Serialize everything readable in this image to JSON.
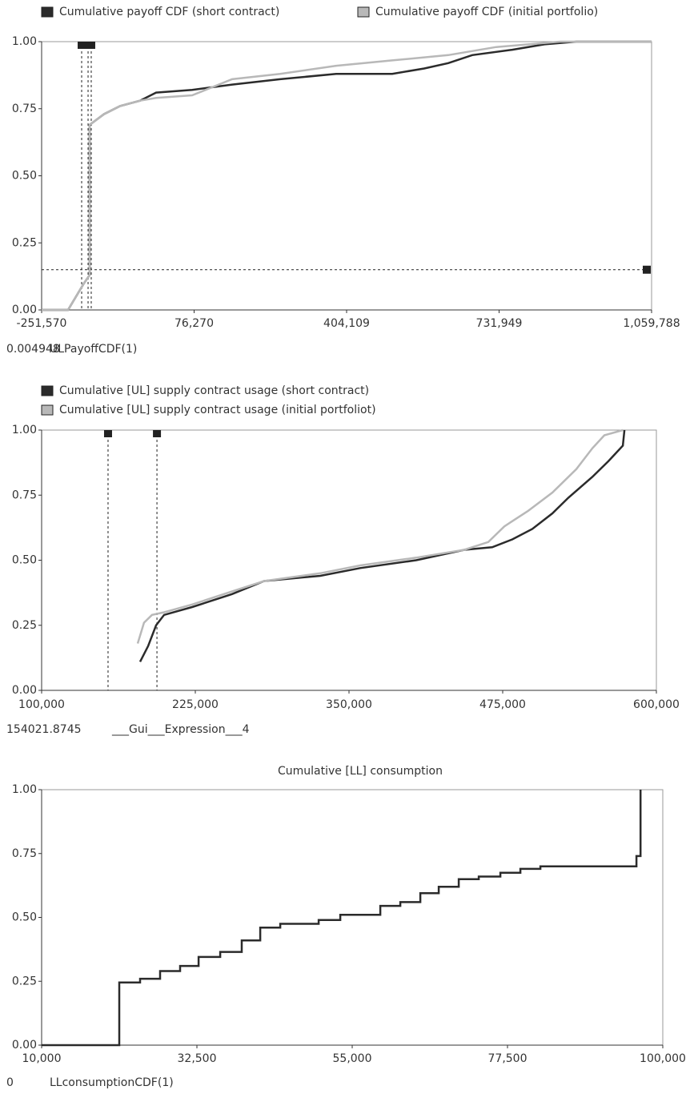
{
  "chart_data": [
    {
      "type": "line",
      "series": [
        {
          "name": "Cumulative payoff CDF (short contract)",
          "color": "#2b2b2b",
          "x": [
            -251570,
            -194800,
            -160350,
            -148300,
            -148300,
            -117300,
            -82900,
            -39900,
            -5500,
            72000,
            158000,
            261300,
            381800,
            502200,
            571000,
            622700,
            674300,
            760300,
            829200,
            898000,
            1059800
          ],
          "values": [
            0,
            0,
            0.1,
            0.13,
            0.69,
            0.73,
            0.76,
            0.78,
            0.81,
            0.82,
            0.84,
            0.86,
            0.88,
            0.88,
            0.9,
            0.92,
            0.95,
            0.97,
            0.99,
            1,
            1
          ]
        },
        {
          "name": "Cumulative payoff CDF (initial portfolio)",
          "color": "#b8b8b8",
          "x": [
            -251570,
            -194800,
            -160350,
            -148300,
            -148300,
            -117300,
            -82900,
            -39900,
            -5500,
            72000,
            158000,
            261300,
            381800,
            502200,
            622700,
            725900,
            863600,
            1059800
          ],
          "values": [
            0,
            0,
            0.1,
            0.13,
            0.69,
            0.73,
            0.76,
            0.78,
            0.79,
            0.8,
            0.86,
            0.88,
            0.91,
            0.93,
            0.95,
            0.98,
            1,
            1
          ]
        }
      ],
      "xlim": [
        -251570,
        1059788
      ],
      "xticks": [
        {
          "value": -251570,
          "label": "-251,570"
        },
        {
          "value": 76270,
          "label": "76,270"
        },
        {
          "value": 404109,
          "label": "404,109"
        },
        {
          "value": 731949,
          "label": "731,949"
        },
        {
          "value": 1059788,
          "label": "1,059,788"
        }
      ],
      "ylim": [
        0,
        1
      ],
      "yticks": [
        {
          "value": 0,
          "label": "0.00"
        },
        0.25,
        {
          "value": 0.5,
          "label": "0.50"
        },
        0.75,
        {
          "value": 1,
          "label": "1.00"
        }
      ],
      "reference_x": [
        -165500,
        -151700,
        -144900
      ],
      "reference_y": [
        0.15
      ],
      "readout": "0.004948",
      "expression": "ULPayoffCDF(1)"
    },
    {
      "type": "line",
      "series": [
        {
          "name": "Cumulative [UL] supply contract usage (short contract)",
          "color": "#2b2b2b",
          "x": [
            180100,
            186600,
            193100,
            199600,
            222400,
            254900,
            281000,
            326600,
            359100,
            404700,
            443800,
            466500,
            482800,
            499100,
            515400,
            528400,
            547900,
            560900,
            572700,
            574000
          ],
          "values": [
            0.11,
            0.17,
            0.25,
            0.29,
            0.32,
            0.37,
            0.42,
            0.44,
            0.47,
            0.5,
            0.54,
            0.55,
            0.58,
            0.62,
            0.68,
            0.74,
            0.82,
            0.88,
            0.94,
            1
          ]
        },
        {
          "name": "Cumulative [UL] supply contract usage (initial portfoliot)",
          "color": "#b8b8b8",
          "x": [
            178100,
            183300,
            189800,
            199600,
            222400,
            254900,
            281000,
            326600,
            359100,
            404700,
            443800,
            463300,
            476300,
            495800,
            515400,
            534900,
            547900,
            557700,
            572700
          ],
          "values": [
            0.18,
            0.26,
            0.29,
            0.3,
            0.33,
            0.38,
            0.42,
            0.45,
            0.48,
            0.51,
            0.54,
            0.57,
            0.63,
            0.69,
            0.76,
            0.85,
            0.93,
            0.98,
            1
          ]
        }
      ],
      "xlim": [
        100000,
        600000
      ],
      "xticks": [
        {
          "value": 100000,
          "label": "100,000"
        },
        {
          "value": 225000,
          "label": "225,000"
        },
        {
          "value": 350000,
          "label": "350,000"
        },
        {
          "value": 475000,
          "label": "475,000"
        },
        {
          "value": 600000,
          "label": "600,000"
        }
      ],
      "ylim": [
        0,
        1
      ],
      "yticks": [
        {
          "value": 0,
          "label": "0.00"
        },
        0.25,
        {
          "value": 0.5,
          "label": "0.50"
        },
        0.75,
        {
          "value": 1,
          "label": "1.00"
        }
      ],
      "reference_x": [
        154021.8745,
        193800
      ],
      "readout": "154021.8745",
      "expression": "___Gui___Expression___4"
    },
    {
      "type": "line",
      "title": "Cumulative [LL] consumption",
      "series": [
        {
          "color": "#2b2b2b",
          "x": [
            10000,
            21250,
            21250,
            24270,
            24270,
            27170,
            27170,
            30070,
            30070,
            32740,
            32740,
            35870,
            35870,
            39000,
            39000,
            41670,
            41670,
            44570,
            44570,
            50140,
            50140,
            53270,
            53270,
            59070,
            59070,
            61970,
            61970,
            64870,
            64870,
            67540,
            67540,
            70440,
            70440,
            73340,
            73340,
            76470,
            76470,
            79370,
            79370,
            82270,
            82270,
            96190,
            96190,
            96770,
            96770
          ],
          "values": [
            0,
            0,
            0.245,
            0.245,
            0.26,
            0.26,
            0.29,
            0.29,
            0.31,
            0.31,
            0.345,
            0.345,
            0.365,
            0.365,
            0.41,
            0.41,
            0.46,
            0.46,
            0.475,
            0.475,
            0.49,
            0.49,
            0.51,
            0.51,
            0.545,
            0.545,
            0.56,
            0.56,
            0.595,
            0.595,
            0.62,
            0.62,
            0.65,
            0.65,
            0.66,
            0.66,
            0.675,
            0.675,
            0.69,
            0.69,
            0.7,
            0.7,
            0.74,
            0.74,
            1
          ]
        }
      ],
      "xlim": [
        10000,
        100000
      ],
      "xticks": [
        {
          "value": 10000,
          "label": "10,000"
        },
        {
          "value": 32500,
          "label": "32,500"
        },
        {
          "value": 55000,
          "label": "55,000"
        },
        {
          "value": 77500,
          "label": "77,500"
        },
        {
          "value": 100000,
          "label": "100,000"
        }
      ],
      "ylim": [
        0,
        1
      ],
      "yticks": [
        {
          "value": 0,
          "label": "0.00"
        },
        0.25,
        {
          "value": 0.5,
          "label": "0.50"
        },
        0.75,
        {
          "value": 1,
          "label": "1.00"
        }
      ],
      "readout": "0",
      "expression": "LLconsumptionCDF(1)"
    }
  ]
}
